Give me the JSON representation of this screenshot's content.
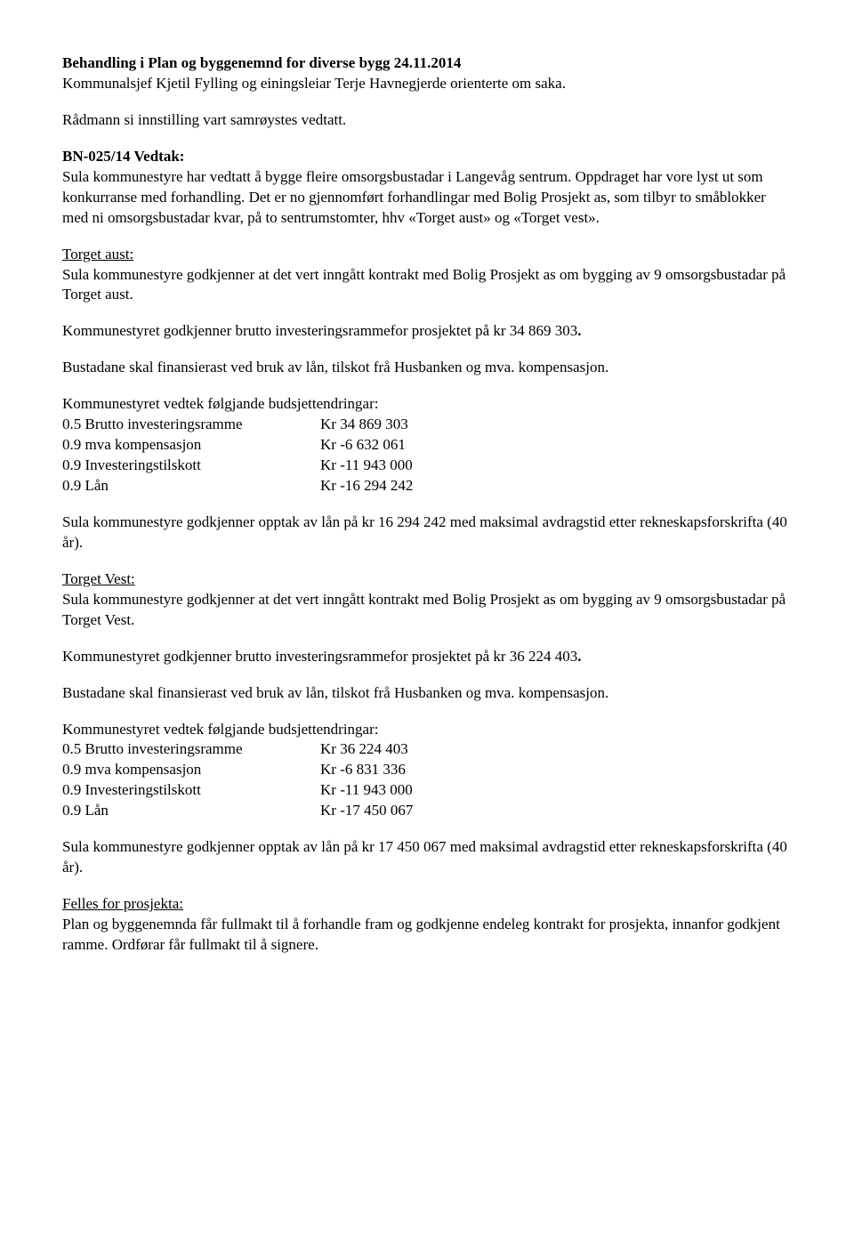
{
  "heading": "Behandling i Plan og byggenemnd for diverse bygg 24.11.2014",
  "intro1": "Kommunalsjef Kjetil Fylling og einingsleiar Terje Havnegjerde orienterte om saka.",
  "intro2": "Rådmann si innstilling vart samrøystes vedtatt.",
  "vedtakTitle": "BN-025/14 Vedtak:",
  "vedtakBody": "Sula kommunestyre har vedtatt å bygge fleire omsorgsbustadar i Langevåg sentrum. Oppdraget har vore lyst ut som konkurranse med forhandling. Det er no gjennomført forhandlingar med Bolig Prosjekt as, som tilbyr to småblokker med ni omsorgsbustadar kvar, på to sentrumstomter, hhv «Torget aust» og «Torget vest».",
  "aust": {
    "title": "Torget aust:",
    "p1": "Sula kommunestyre godkjenner at det vert inngått kontrakt med Bolig Prosjekt as om bygging av 9 omsorgsbustadar på Torget aust.",
    "p2a": "Kommunestyret godkjenner brutto investeringsrammefor prosjektet på kr  34 869 303",
    "p2b": ".",
    "p3": "Bustadane skal finansierast ved bruk av lån, tilskot frå Husbanken og mva. kompensasjon.",
    "tableTitle": "Kommunestyret vedtek følgjande budsjettendringar:",
    "rows": [
      {
        "label": "0.5 Brutto investeringsramme",
        "value": "Kr 34 869 303"
      },
      {
        "label": "0.9 mva kompensasjon",
        "value": "Kr -6 632 061"
      },
      {
        "label": "0.9 Investeringstilskott",
        "value": "Kr -11 943 000"
      },
      {
        "label": "0.9 Lån",
        "value": "Kr -16 294 242"
      }
    ],
    "p4": "Sula kommunestyre godkjenner opptak av lån på kr 16 294 242 med maksimal avdragstid etter rekneskapsforskrifta (40 år)."
  },
  "vest": {
    "title": "Torget Vest:",
    "p1": "Sula kommunestyre godkjenner at det vert inngått kontrakt med Bolig Prosjekt as om bygging av 9 omsorgsbustadar på Torget Vest.",
    "p2a": "Kommunestyret godkjenner brutto investeringsrammefor prosjektet på kr  36 224 403",
    "p2b": ".",
    "p3": "Bustadane skal finansierast ved bruk av lån, tilskot frå Husbanken og mva. kompensasjon.",
    "tableTitle": "Kommunestyret vedtek følgjande budsjettendringar:",
    "rows": [
      {
        "label": "0.5 Brutto investeringsramme",
        "value": "Kr 36 224 403"
      },
      {
        "label": "0.9 mva kompensasjon",
        "value": "Kr -6 831 336"
      },
      {
        "label": "0.9 Investeringstilskott",
        "value": "Kr -11 943 000"
      },
      {
        "label": "0.9 Lån",
        "value": "Kr -17 450 067"
      }
    ],
    "p4": "Sula kommunestyre godkjenner opptak av lån på kr 17 450 067 med maksimal avdragstid etter rekneskapsforskrifta (40 år)."
  },
  "felles": {
    "title": "Felles for prosjekta:",
    "p1": "Plan og byggenemnda får fullmakt til å forhandle fram og godkjenne endeleg kontrakt for prosjekta, innanfor godkjent ramme. Ordførar får fullmakt til å signere."
  }
}
